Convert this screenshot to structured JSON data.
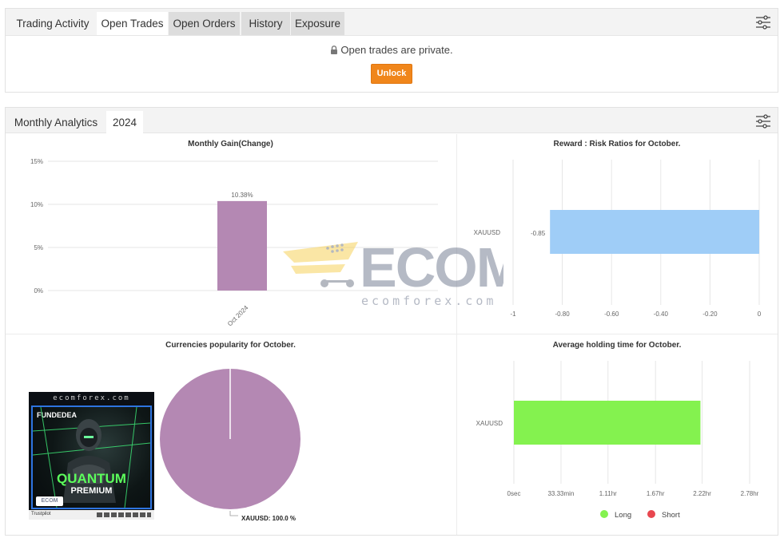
{
  "trading": {
    "title": "Trading Activity",
    "tabs": [
      "Open Trades",
      "Open Orders",
      "History",
      "Exposure"
    ],
    "private_message": "Open trades are private.",
    "unlock_label": "Unlock"
  },
  "monthly": {
    "title": "Monthly Analytics",
    "year": "2024"
  },
  "colors": {
    "bar_purple": "#b488b3",
    "bar_blue": "#9fcdf7",
    "bar_green": "#84f24f",
    "unlock_orange": "#f0861b",
    "short_red": "#e8474f"
  },
  "charts": {
    "gain": {
      "title": "Monthly Gain(Change)",
      "y_ticks": [
        "15%",
        "10%",
        "5%",
        "0%"
      ],
      "category": "Oct 2024",
      "data_label": "10.38%"
    },
    "risk": {
      "title": "Reward : Risk Ratios for October.",
      "category": "XAUUSD",
      "data_label": "-0.85",
      "x_ticks": [
        "-1",
        "-0.80",
        "-0.60",
        "-0.40",
        "-0.20",
        "0"
      ]
    },
    "popularity": {
      "title": "Currencies popularity for October.",
      "slice_label": "XAUUSD: 100.0 %"
    },
    "holding": {
      "title": "Average holding time for October.",
      "category": "XAUUSD",
      "x_ticks": [
        "0sec",
        "33.33min",
        "1.11hr",
        "1.67hr",
        "2.22hr",
        "2.78hr"
      ],
      "legend": [
        "Long",
        "Short"
      ]
    }
  },
  "chart_data": [
    {
      "type": "bar",
      "title": "Monthly Gain(Change)",
      "categories": [
        "Oct 2024"
      ],
      "values": [
        10.38
      ],
      "ylim": [
        0,
        15
      ],
      "y_unit": "%",
      "grid": true
    },
    {
      "type": "bar",
      "orientation": "horizontal",
      "title": "Reward : Risk Ratios for October.",
      "categories": [
        "XAUUSD"
      ],
      "values": [
        -0.85
      ],
      "xlim": [
        -1,
        0
      ],
      "grid": true
    },
    {
      "type": "pie",
      "title": "Currencies popularity for October.",
      "categories": [
        "XAUUSD"
      ],
      "values": [
        100.0
      ]
    },
    {
      "type": "bar",
      "orientation": "horizontal",
      "title": "Average holding time for October.",
      "categories": [
        "XAUUSD"
      ],
      "series": [
        {
          "name": "Long",
          "values": [
            2.2
          ]
        },
        {
          "name": "Short",
          "values": [
            0
          ]
        }
      ],
      "x_unit": "hr",
      "xlim": [
        0,
        2.78
      ],
      "legend": "bottom",
      "grid": true
    }
  ],
  "watermark": {
    "brand": "ECOM",
    "domain": "ecomforex.com"
  },
  "ad": {
    "site": "ecomforex.com",
    "brand": "FUNDEDEA",
    "product": "QUANTUM",
    "subtitle": "PREMIUM",
    "logo": "ECOM",
    "trust": "Trustpilot"
  }
}
